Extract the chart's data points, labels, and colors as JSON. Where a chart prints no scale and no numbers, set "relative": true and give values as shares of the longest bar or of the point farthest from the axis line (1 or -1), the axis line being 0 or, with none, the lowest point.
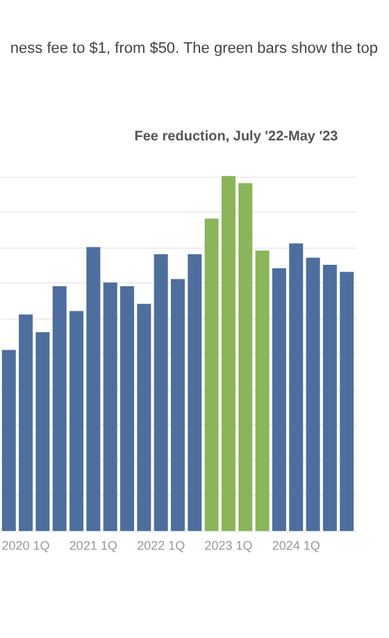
{
  "chart_data": {
    "type": "bar",
    "subtitle": "ness fee to $1, from $50. The green bars show the top",
    "annotations": [
      "Fee reduction, July '22-May '23"
    ],
    "categories": [
      null,
      "2020 1Q",
      null,
      null,
      null,
      "2021 1Q",
      null,
      null,
      null,
      "2022 1Q",
      null,
      null,
      null,
      "2023 1Q",
      null,
      null,
      null,
      "2024 1Q",
      null,
      null,
      null
    ],
    "values": [
      0.51,
      0.61,
      0.56,
      0.69,
      0.62,
      0.8,
      0.7,
      0.69,
      0.64,
      0.78,
      0.71,
      0.78,
      0.88,
      1,
      0.98,
      0.79,
      0.74,
      0.81,
      0.77,
      0.75,
      0.73
    ],
    "colors": [
      "#4e6e9e",
      "#4e6e9e",
      "#4e6e9e",
      "#4e6e9e",
      "#4e6e9e",
      "#4e6e9e",
      "#4e6e9e",
      "#4e6e9e",
      "#4e6e9e",
      "#4e6e9e",
      "#4e6e9e",
      "#4e6e9e",
      "#8ab55a",
      "#8ab55a",
      "#8ab55a",
      "#8ab55a",
      "#4e6e9e",
      "#4e6e9e",
      "#4e6e9e",
      "#4e6e9e",
      "#4e6e9e"
    ],
    "relative": true,
    "grid": "y"
  }
}
